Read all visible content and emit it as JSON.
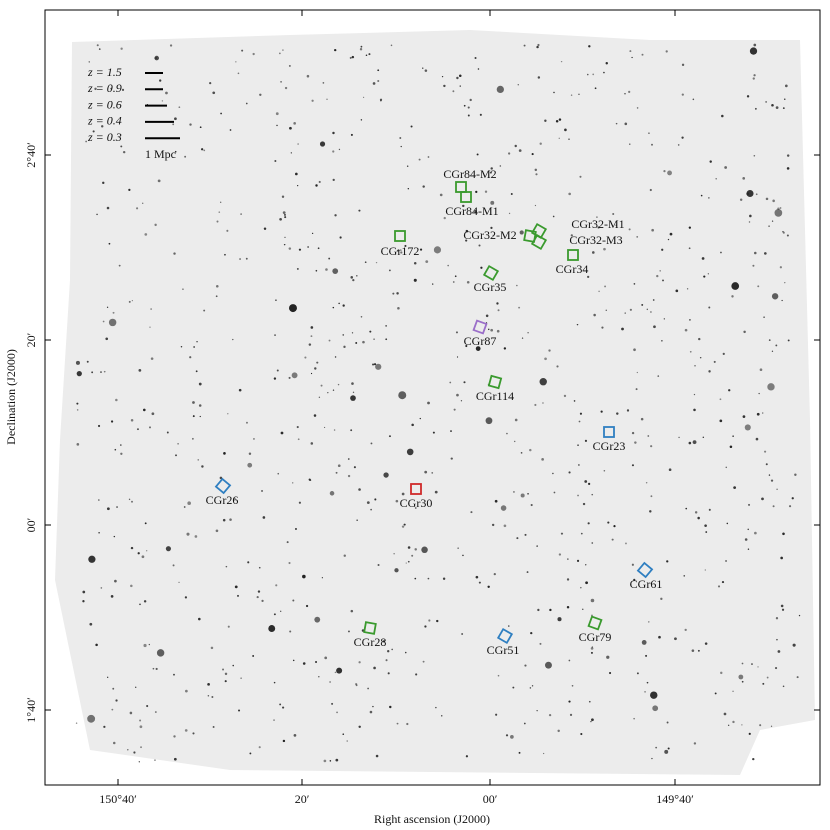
{
  "x_axis": {
    "label": "Right ascension (J2000)",
    "ticks": [
      "150°40′",
      "20′",
      "00′",
      "149°40′"
    ]
  },
  "y_axis": {
    "label": "Declination (J2000)",
    "ticks": [
      "1°40′",
      "00′",
      "20′",
      "2°40′"
    ]
  },
  "legend": {
    "entries": [
      "z = 1.5",
      "z = 0.9",
      "z = 0.6",
      "z = 0.4",
      "z = 0.3"
    ],
    "scale_label": "1 Mpc"
  },
  "groups": [
    {
      "name": "CGr84-M2",
      "color": "#3a9a2e"
    },
    {
      "name": "CGr84-M1",
      "color": "#3a9a2e"
    },
    {
      "name": "CGr172",
      "color": "#3a9a2e"
    },
    {
      "name": "CGr32-M2",
      "color": "#3a9a2e"
    },
    {
      "name": "CGr32-M1",
      "color": "#3a9a2e"
    },
    {
      "name": "CGr32-M3",
      "color": "#3a9a2e"
    },
    {
      "name": "CGr34",
      "color": "#3a9a2e"
    },
    {
      "name": "CGr35",
      "color": "#3a9a2e"
    },
    {
      "name": "CGr87",
      "color": "#9b6fc9"
    },
    {
      "name": "CGr114",
      "color": "#3a9a2e"
    },
    {
      "name": "CGr23",
      "color": "#2f7fc1"
    },
    {
      "name": "CGr26",
      "color": "#2f7fc1"
    },
    {
      "name": "CGr30",
      "color": "#d02a2a"
    },
    {
      "name": "CGr61",
      "color": "#2f7fc1"
    },
    {
      "name": "CGr28",
      "color": "#3a9a2e"
    },
    {
      "name": "CGr51",
      "color": "#2f7fc1"
    },
    {
      "name": "CGr79",
      "color": "#3a9a2e"
    }
  ]
}
